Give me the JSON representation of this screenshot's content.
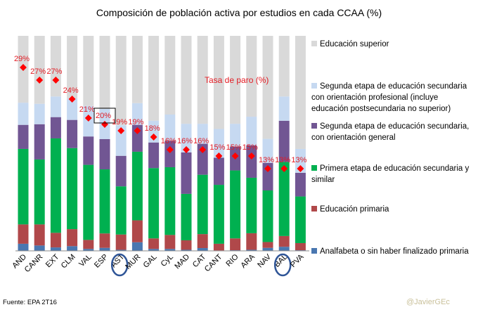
{
  "title": "Composición de población activa por estudios en  cada CCAA (%)",
  "source": "Fuente: EPA 2T16",
  "watermark": "@JavierGEc",
  "chart_data": {
    "type": "bar",
    "stacked": true,
    "title": "Composición de población activa por estudios en  cada CCAA (%)",
    "ylim": [
      0,
      100
    ],
    "secondary_ylim": [
      0,
      34
    ],
    "grid": false,
    "legend_position": "right",
    "categories": [
      "AND",
      "CANR",
      "EXT",
      "CLM",
      "VAL",
      "ESP",
      "AST",
      "MUR",
      "GAL",
      "CyL",
      "MAD",
      "CAT",
      "CANT",
      "RIO",
      "ARA",
      "NAV",
      "BAL",
      "PVA"
    ],
    "highlighted_categories": [
      "AST",
      "BAL"
    ],
    "highlighted_label": "ESP",
    "series": [
      {
        "name": "Analfabeta o sin haber finalizado primaria",
        "color": "#4a77b0",
        "values": [
          3.3,
          2.5,
          1.6,
          2.2,
          0.9,
          1.4,
          0.5,
          4.0,
          0.9,
          0.9,
          0.5,
          1.3,
          0.2,
          0.3,
          0.5,
          1.4,
          1.9,
          0.3
        ]
      },
      {
        "name": "Educación primaria",
        "color": "#b0484a",
        "values": [
          9.0,
          9.8,
          6.8,
          7.9,
          4.2,
          6.7,
          7.1,
          10.2,
          4.9,
          6.5,
          4.4,
          6.5,
          3.1,
          5.5,
          7.7,
          2.7,
          5.0,
          3.3
        ]
      },
      {
        "name": "Primera etapa de educación secundaria y similar",
        "color": "#00b050",
        "values": [
          35.1,
          30.2,
          43.9,
          37.7,
          34.9,
          29.8,
          22.4,
          31.9,
          32.7,
          31.5,
          21.6,
          27.6,
          27.4,
          31.6,
          25.8,
          24.0,
          34.5,
          21.7
        ]
      },
      {
        "name": "Segunda etapa de educación secundaria, con orientación general",
        "color": "#715693",
        "values": [
          11.2,
          16.4,
          9.9,
          13.1,
          13.2,
          14.1,
          14.2,
          12.5,
          11.9,
          12.3,
          19.3,
          14.4,
          12.6,
          11.1,
          15.1,
          12.8,
          19.1,
          11.0
        ]
      },
      {
        "name": "Segunda etapa de educación secundaria con orientación profesional (incluye educación postsecundaria no superior)",
        "color": "#c6d9f1",
        "values": [
          10.3,
          9.5,
          9.6,
          10.0,
          14.2,
          14.0,
          14.2,
          10.1,
          10.1,
          12.2,
          13.3,
          9.3,
          13.4,
          10.6,
          13.3,
          11.2,
          11.3,
          11.1
        ]
      },
      {
        "name": "Educación superior",
        "color": "#d9d9d9",
        "values": [
          31.1,
          31.6,
          28.2,
          29.1,
          32.6,
          34.0,
          41.6,
          31.3,
          39.5,
          36.6,
          40.9,
          40.9,
          43.3,
          40.9,
          37.6,
          47.9,
          28.2,
          52.6
        ]
      }
    ],
    "line_series": {
      "name": "Tasa de paro (%)",
      "color": "#ff0000",
      "axis": "secondary",
      "values": [
        29,
        27,
        27,
        24,
        21,
        20,
        19,
        19,
        18,
        16,
        16,
        16,
        15,
        15,
        15,
        13,
        13,
        13
      ],
      "labels": [
        "29%",
        "27%",
        "27%",
        "24%",
        "21%",
        "20%",
        "19%",
        "19%",
        "18%",
        "16%",
        "16%",
        "16%",
        "15%",
        "15%",
        "15%",
        "13%",
        "13%",
        "13%"
      ]
    }
  }
}
